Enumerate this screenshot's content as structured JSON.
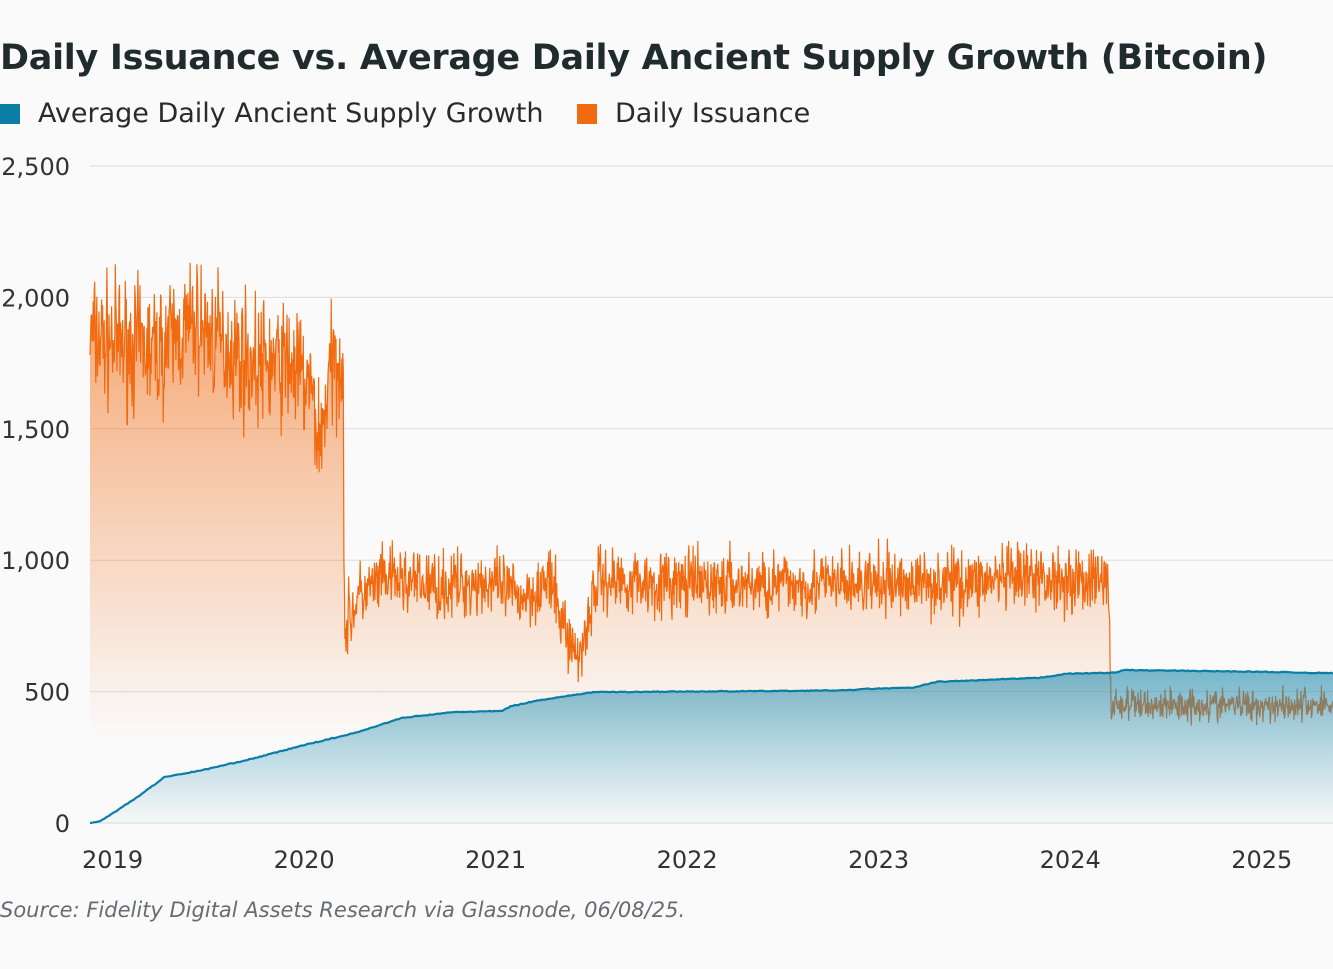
{
  "chart_data": {
    "type": "area",
    "title": "Daily Issuance vs. Average Daily Ancient Supply Growth (Bitcoin)",
    "source": "Source: Fidelity Digital Assets Research via Glassnode, 06/08/25.",
    "xlabel": "",
    "ylabel": "",
    "xlim": [
      2018.95,
      2025.44
    ],
    "ylim": [
      0,
      2500
    ],
    "yticks": [
      0,
      500,
      1000,
      1500,
      2000,
      2500
    ],
    "ytick_labels": [
      "0",
      "500",
      "1,000",
      "1,500",
      "2,000",
      "2,500"
    ],
    "xticks": [
      2019,
      2020,
      2021,
      2022,
      2023,
      2024,
      2025
    ],
    "xtick_labels": [
      "2019",
      "2020",
      "2021",
      "2022",
      "2023",
      "2024",
      "2025"
    ],
    "grid": true,
    "legend_position": "top-left",
    "series": [
      {
        "name": "Average Daily Ancient Supply Growth",
        "color": "#0a7ea4",
        "points": [
          [
            2018.95,
            0
          ],
          [
            2019.0,
            5
          ],
          [
            2019.2,
            100
          ],
          [
            2019.34,
            175
          ],
          [
            2019.53,
            200
          ],
          [
            2019.8,
            245
          ],
          [
            2020.07,
            297
          ],
          [
            2020.33,
            342
          ],
          [
            2020.45,
            370
          ],
          [
            2020.58,
            400
          ],
          [
            2020.85,
            422
          ],
          [
            2021.1,
            426
          ],
          [
            2021.15,
            445
          ],
          [
            2021.3,
            468
          ],
          [
            2021.58,
            498
          ],
          [
            2022.0,
            500
          ],
          [
            2022.5,
            502
          ],
          [
            2022.9,
            505
          ],
          [
            2023.0,
            510
          ],
          [
            2023.25,
            515
          ],
          [
            2023.37,
            537
          ],
          [
            2023.9,
            552
          ],
          [
            2024.05,
            568
          ],
          [
            2024.3,
            572
          ],
          [
            2024.35,
            582
          ],
          [
            2025.0,
            576
          ],
          [
            2025.44,
            570
          ]
        ]
      },
      {
        "name": "Daily Issuance",
        "color": "#f26a10",
        "volatility": [
          [
            2018.95,
            170
          ],
          [
            2020.28,
            170
          ],
          [
            2020.29,
            90
          ],
          [
            2024.28,
            90
          ],
          [
            2024.29,
            45
          ],
          [
            2025.44,
            45
          ]
        ],
        "points": [
          [
            2018.95,
            1850
          ],
          [
            2019.3,
            1800
          ],
          [
            2019.5,
            1900
          ],
          [
            2019.8,
            1750
          ],
          [
            2020.0,
            1750
          ],
          [
            2020.1,
            1650
          ],
          [
            2020.15,
            1450
          ],
          [
            2020.2,
            1700
          ],
          [
            2020.27,
            1800
          ],
          [
            2020.28,
            740
          ],
          [
            2020.35,
            860
          ],
          [
            2020.5,
            930
          ],
          [
            2020.8,
            900
          ],
          [
            2021.0,
            920
          ],
          [
            2021.2,
            860
          ],
          [
            2021.35,
            920
          ],
          [
            2021.42,
            760
          ],
          [
            2021.5,
            620
          ],
          [
            2021.6,
            930
          ],
          [
            2022.0,
            910
          ],
          [
            2023.0,
            910
          ],
          [
            2024.0,
            930
          ],
          [
            2024.27,
            920
          ],
          [
            2024.28,
            450
          ],
          [
            2025.44,
            450
          ]
        ]
      }
    ]
  }
}
